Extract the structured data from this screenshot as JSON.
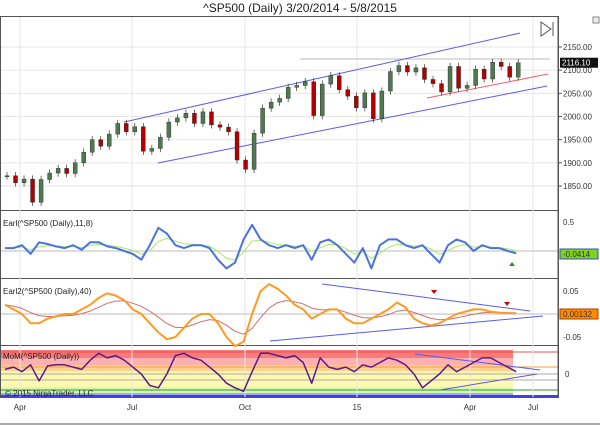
{
  "title": "^SP500 (Daily)  3/20/2014 - 5/8/2015",
  "copyright": "© 2015 NinjaTrader, LLC",
  "colors": {
    "up": "#4f7a4f",
    "down": "#b00000",
    "channel": "#5a5af0",
    "support": "#f06070",
    "earl": "#4a72e0",
    "earl_signal": "#a8ec60",
    "earl2": "#ff9a20",
    "earl2_signal": "#d07070",
    "mom": "#5a1a8c"
  },
  "chart_data": [
    {
      "type": "candlestick",
      "panel": "price",
      "title": "^SP500 (Daily)  3/20/2014 - 5/8/2015",
      "x_ticks": [
        "Apr",
        "Jul",
        "Oct",
        "15",
        "Apr",
        "Jul"
      ],
      "y_ticks": [
        "2150.00",
        "2100.00",
        "2050.00",
        "2000.00",
        "1950.00",
        "1900.00",
        "1850.00"
      ],
      "ylim": [
        1815,
        2185
      ],
      "last_price_label": "2116.10",
      "weekly_close": [
        1872,
        1857,
        1865,
        1815,
        1864,
        1878,
        1888,
        1877,
        1900,
        1923,
        1950,
        1936,
        1962,
        1985,
        1967,
        1978,
        1925,
        1931,
        1955,
        1988,
        1997,
        2007,
        1985,
        2010,
        1982,
        1977,
        1967,
        1906,
        1886,
        1964,
        2018,
        2031,
        2039,
        2063,
        2067,
        2075,
        2002,
        2070,
        2088,
        2058,
        2044,
        2019,
        2051,
        1995,
        2055,
        2097,
        2110,
        2096,
        2105,
        2080,
        2071,
        2053,
        2108,
        2061,
        2067,
        2102,
        2081,
        2117,
        2108,
        2085,
        2116
      ]
    },
    {
      "type": "line",
      "panel": "earl",
      "label": "Earl(^SP500 (Daily),11,8)",
      "y_ticks": [
        "0.5"
      ],
      "last_value_label": "-0.0414",
      "values": [
        0.05,
        0.05,
        0.1,
        -0.05,
        0.15,
        0.12,
        0.08,
        0.05,
        0.1,
        0.02,
        0.15,
        0.15,
        0.08,
        0.05,
        0.0,
        -0.05,
        -0.15,
        0.1,
        0.4,
        0.3,
        0.1,
        0.05,
        0.1,
        0.1,
        0.05,
        -0.15,
        -0.3,
        -0.2,
        0.2,
        0.45,
        0.2,
        0.1,
        0.05,
        0.1,
        0.05,
        0.1,
        -0.15,
        0.15,
        0.2,
        0.1,
        -0.05,
        -0.2,
        0.05,
        -0.3,
        0.1,
        0.2,
        0.2,
        0.1,
        0.05,
        0.1,
        -0.05,
        -0.2,
        0.1,
        0.2,
        0.15,
        0.0,
        0.1,
        0.05,
        0.05,
        0.0,
        -0.04
      ]
    },
    {
      "type": "line",
      "panel": "earl2",
      "label": "Earl2(^SP500 (Daily),40)",
      "y_ticks": [
        "0.05",
        "-0.05"
      ],
      "last_value_label": "0.00132",
      "values": [
        0.02,
        0.01,
        0.0,
        -0.02,
        -0.02,
        -0.01,
        -0.005,
        0.0,
        0.0,
        0.01,
        0.02,
        0.035,
        0.045,
        0.04,
        0.03,
        0.01,
        0.0,
        -0.02,
        -0.04,
        -0.055,
        -0.05,
        -0.03,
        -0.01,
        0.0,
        0.0,
        -0.02,
        -0.05,
        -0.07,
        -0.06,
        0.0,
        0.05,
        0.065,
        0.055,
        0.04,
        0.02,
        0.01,
        -0.01,
        0.0,
        0.01,
        0.01,
        -0.01,
        -0.02,
        -0.02,
        -0.01,
        0.0,
        0.01,
        0.025,
        0.015,
        -0.01,
        -0.02,
        -0.025,
        -0.02,
        -0.01,
        0.0,
        0.005,
        0.01,
        0.01,
        0.005,
        0.003,
        0.002,
        0.00132
      ]
    },
    {
      "type": "line",
      "panel": "mom",
      "label": "MoM(^SP500 (Daily))",
      "y_ticks": [
        "0"
      ],
      "values": [
        0.2,
        0.3,
        0.1,
        0.4,
        -0.3,
        0.35,
        0.4,
        0.4,
        0.3,
        0.2,
        0.6,
        0.9,
        0.7,
        0.8,
        0.6,
        0.3,
        0.0,
        -0.5,
        -0.6,
        0.0,
        0.8,
        0.9,
        0.7,
        0.6,
        0.3,
        0.0,
        -0.4,
        -0.6,
        -0.75,
        0.1,
        0.9,
        0.9,
        0.8,
        0.7,
        0.8,
        0.5,
        -0.4,
        0.7,
        0.3,
        0.2,
        0.3,
        0.1,
        0.4,
        0.3,
        0.5,
        0.7,
        0.6,
        0.4,
        0.0,
        -0.6,
        -0.3,
        0.0,
        0.4,
        0.1,
        0.3,
        0.5,
        0.7,
        0.7,
        0.5,
        0.3,
        0.1
      ]
    }
  ]
}
